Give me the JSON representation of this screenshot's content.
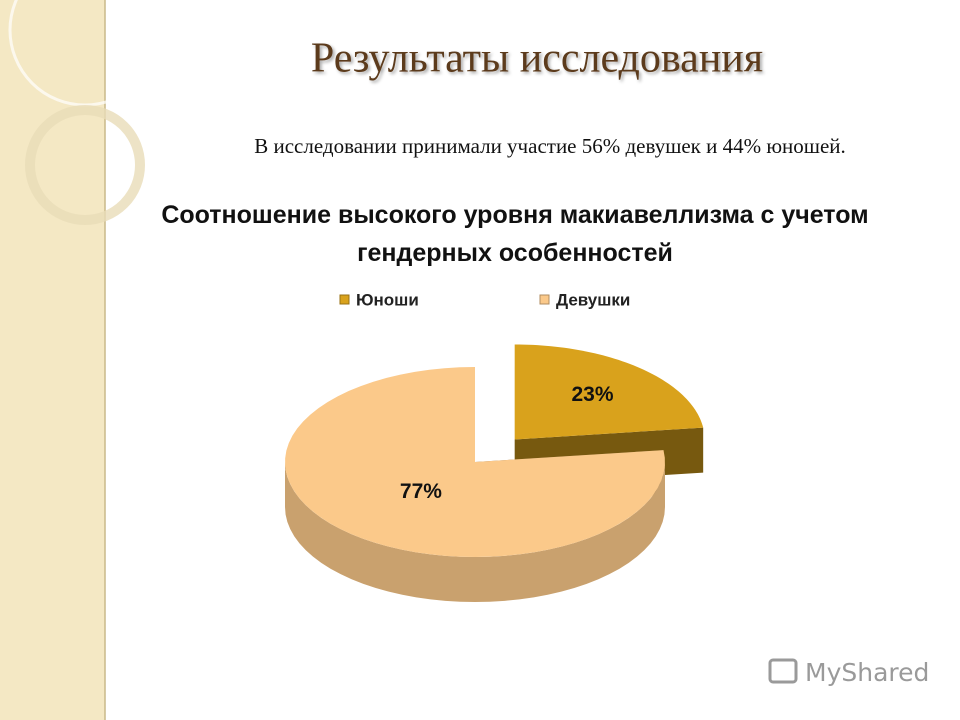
{
  "slide_title": "Результаты исследования",
  "text": "В исследовании принимали участие 56% девушек и 44% юношей.",
  "watermark": "MyShared",
  "chart_data": {
    "type": "pie",
    "title": "Соотношение высокого уровня макиавеллизма с учетом гендерных особенностей",
    "categories": [
      "Юноши",
      "Девушки"
    ],
    "values": [
      23,
      77
    ],
    "value_labels": [
      "23%",
      "77%"
    ],
    "colors": [
      "#d9a21c",
      "#fbc98a"
    ],
    "legend": "top"
  }
}
